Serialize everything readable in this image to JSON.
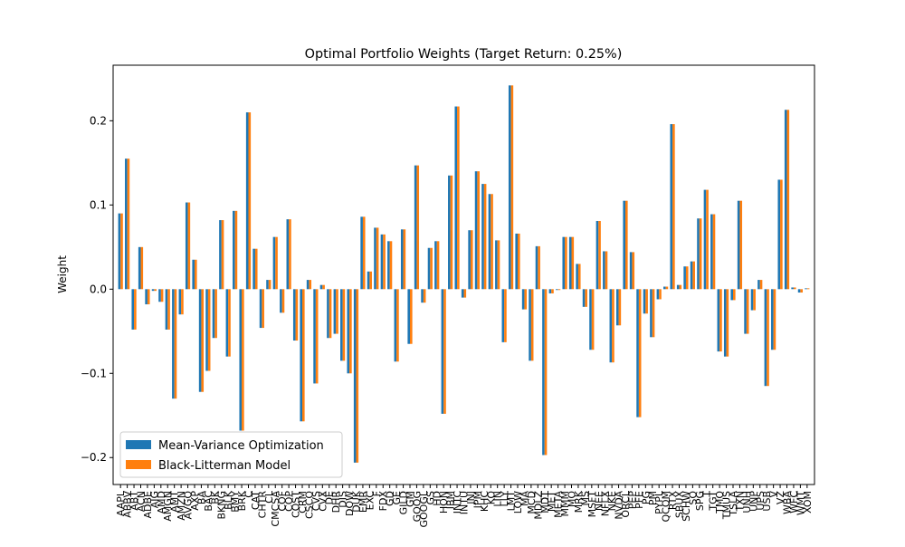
{
  "chart_data": {
    "type": "bar",
    "title": "Optimal Portfolio Weights (Target Return: 0.25%)",
    "ylabel": "Weight",
    "categories": [
      "AAPL",
      "ABBV",
      "ABT",
      "ACN",
      "ADBE",
      "AIG",
      "AMD",
      "AMGN",
      "AMT",
      "AMZN",
      "AVGO",
      "AXP",
      "BA",
      "BAC",
      "BK",
      "BKNG",
      "BLK",
      "BMY",
      "BRK",
      "C",
      "CAT",
      "CHTR",
      "CL",
      "CMCSA",
      "COF",
      "COP",
      "COST",
      "CRM",
      "CSCO",
      "CVS",
      "CVX",
      "DE",
      "DHR",
      "DIS",
      "DOW",
      "DUK",
      "EMR",
      "EXC",
      "F",
      "FDX",
      "GD",
      "GE",
      "GILD",
      "GM",
      "GOOG",
      "GOOGL",
      "GS",
      "HD",
      "HON",
      "IBM",
      "INTC",
      "INTU",
      "JNJ",
      "JPM",
      "KHC",
      "KO",
      "LIN",
      "LLY",
      "LMT",
      "LOW",
      "MA",
      "MCD",
      "MDLZ",
      "MDT",
      "MET",
      "META",
      "MMM",
      "MO",
      "MRK",
      "MS",
      "MSFT",
      "NEE",
      "NFLX",
      "NKE",
      "NVDA",
      "ORCL",
      "PEP",
      "PFE",
      "PG",
      "PM",
      "PYPL",
      "QCOM",
      "RTX",
      "SBUX",
      "SCHW",
      "SO",
      "SPG",
      "T",
      "TGT",
      "TMO",
      "TMUS",
      "TSLA",
      "TXN",
      "UNH",
      "UNP",
      "UPS",
      "USB",
      "V",
      "VZ",
      "WBA",
      "WFC",
      "WMT",
      "XOM"
    ],
    "series": [
      {
        "name": "Mean-Variance Optimization",
        "color": "#1f77b4",
        "values": [
          0.09,
          0.155,
          -0.048,
          0.05,
          -0.018,
          -0.002,
          -0.015,
          -0.048,
          -0.13,
          -0.03,
          0.103,
          0.035,
          -0.122,
          -0.097,
          -0.058,
          0.082,
          -0.08,
          0.093,
          -0.168,
          0.21,
          0.048,
          -0.046,
          0.011,
          0.062,
          -0.028,
          0.083,
          -0.061,
          -0.157,
          0.011,
          -0.112,
          0.005,
          -0.058,
          -0.053,
          -0.085,
          -0.1,
          -0.206,
          0.086,
          0.021,
          0.073,
          0.065,
          0.057,
          -0.086,
          0.071,
          -0.065,
          0.147,
          -0.016,
          0.049,
          0.057,
          -0.148,
          0.135,
          0.217,
          -0.01,
          0.07,
          0.14,
          0.125,
          0.113,
          0.058,
          -0.063,
          0.242,
          0.066,
          -0.024,
          -0.085,
          0.051,
          -0.197,
          -0.005,
          -0.001,
          0.062,
          0.062,
          0.03,
          -0.021,
          -0.072,
          0.081,
          0.045,
          -0.087,
          -0.043,
          0.105,
          0.044,
          -0.152,
          -0.029,
          -0.057,
          -0.012,
          0.003,
          0.196,
          0.005,
          0.027,
          0.033,
          0.084,
          0.118,
          0.089,
          -0.074,
          -0.08,
          -0.013,
          0.105,
          -0.053,
          -0.025,
          0.011,
          -0.115,
          -0.072,
          0.13,
          0.213,
          0.002,
          -0.004,
          0.001
        ]
      },
      {
        "name": "Black-Litterman Model",
        "color": "#ff7f0e",
        "values": [
          0.09,
          0.155,
          -0.048,
          0.05,
          -0.018,
          -0.002,
          -0.015,
          -0.048,
          -0.13,
          -0.03,
          0.103,
          0.035,
          -0.122,
          -0.097,
          -0.058,
          0.082,
          -0.08,
          0.093,
          -0.168,
          0.21,
          0.048,
          -0.046,
          0.011,
          0.062,
          -0.028,
          0.083,
          -0.061,
          -0.157,
          0.011,
          -0.112,
          0.005,
          -0.058,
          -0.053,
          -0.085,
          -0.1,
          -0.206,
          0.086,
          0.021,
          0.073,
          0.065,
          0.057,
          -0.086,
          0.071,
          -0.065,
          0.147,
          -0.016,
          0.049,
          0.057,
          -0.148,
          0.135,
          0.217,
          -0.01,
          0.07,
          0.14,
          0.125,
          0.113,
          0.058,
          -0.063,
          0.242,
          0.066,
          -0.024,
          -0.085,
          0.051,
          -0.197,
          -0.005,
          -0.001,
          0.062,
          0.062,
          0.03,
          -0.021,
          -0.072,
          0.081,
          0.045,
          -0.087,
          -0.043,
          0.105,
          0.044,
          -0.152,
          -0.029,
          -0.057,
          -0.012,
          0.003,
          0.196,
          0.005,
          0.027,
          0.033,
          0.084,
          0.118,
          0.089,
          -0.074,
          -0.08,
          -0.013,
          0.105,
          -0.053,
          -0.025,
          0.011,
          -0.115,
          -0.072,
          0.13,
          0.213,
          0.002,
          -0.004,
          0.001
        ]
      }
    ],
    "ylim": [
      -0.232,
      0.266
    ],
    "yticks": [
      {
        "value": -0.2,
        "label": "−0.2"
      },
      {
        "value": -0.1,
        "label": "−0.1"
      },
      {
        "value": 0,
        "label": "0.0"
      },
      0.1,
      0.2
    ],
    "legend": "lower left"
  }
}
